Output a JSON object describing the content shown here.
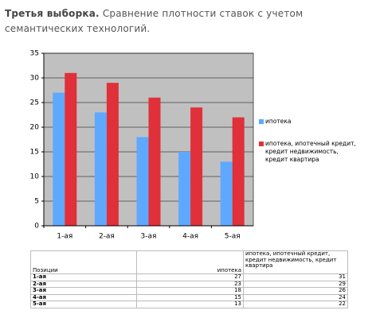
{
  "header": {
    "bold": "Третья выборка.",
    "text": "Сравнение плотности ставок с учетом семантических технологий."
  },
  "chart_data": {
    "type": "bar",
    "categories": [
      "1-ая",
      "2-ая",
      "3-ая",
      "4-ая",
      "5-ая"
    ],
    "series": [
      {
        "name": "ипотека",
        "color": "#5ea9ff",
        "values": [
          27,
          23,
          18,
          15,
          13
        ]
      },
      {
        "name": "ипотека, ипотечный кредит, кредит недвижимость, кредит квартира",
        "color": "#e0303a",
        "values": [
          31,
          29,
          26,
          24,
          22
        ]
      }
    ],
    "ylim": [
      0,
      35
    ],
    "yticks": [
      0,
      5,
      10,
      15,
      20,
      25,
      30,
      35
    ],
    "grid": true,
    "legend": "right"
  },
  "table": {
    "header": [
      "Позиции",
      "ипотека",
      "ипотека, ипотечный кредит, кредит недвижимость, кредит квартира"
    ],
    "rows": [
      [
        "1-ая",
        27,
        31
      ],
      [
        "2-ая",
        23,
        29
      ],
      [
        "3-ая",
        18,
        26
      ],
      [
        "4-ая",
        15,
        24
      ],
      [
        "5-ая",
        13,
        22
      ]
    ]
  }
}
